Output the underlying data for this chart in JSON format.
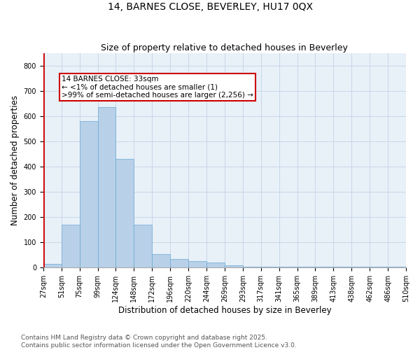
{
  "title1": "14, BARNES CLOSE, BEVERLEY, HU17 0QX",
  "title2": "Size of property relative to detached houses in Beverley",
  "xlabel": "Distribution of detached houses by size in Beverley",
  "ylabel": "Number of detached properties",
  "bar_values": [
    15,
    170,
    580,
    635,
    430,
    170,
    55,
    35,
    25,
    20,
    10,
    5,
    5,
    5,
    5,
    5,
    5,
    5,
    5,
    5
  ],
  "categories": [
    "27sqm",
    "51sqm",
    "75sqm",
    "99sqm",
    "124sqm",
    "148sqm",
    "172sqm",
    "196sqm",
    "220sqm",
    "244sqm",
    "269sqm",
    "293sqm",
    "317sqm",
    "341sqm",
    "365sqm",
    "389sqm",
    "413sqm",
    "438sqm",
    "462sqm",
    "486sqm",
    "510sqm"
  ],
  "bar_color": "#b8d0e8",
  "bar_edge_color": "#6aaad4",
  "highlight_color": "#cc0000",
  "annotation_text": "14 BARNES CLOSE: 33sqm\n← <1% of detached houses are smaller (1)\n>99% of semi-detached houses are larger (2,256) →",
  "ylim": [
    0,
    850
  ],
  "yticks": [
    0,
    100,
    200,
    300,
    400,
    500,
    600,
    700,
    800
  ],
  "grid_color": "#c8d8e8",
  "bg_color": "#e8f0f8",
  "footer_text": "Contains HM Land Registry data © Crown copyright and database right 2025.\nContains public sector information licensed under the Open Government Licence v3.0.",
  "title_fontsize": 10,
  "subtitle_fontsize": 9,
  "axis_label_fontsize": 8.5,
  "tick_fontsize": 7,
  "footer_fontsize": 6.5,
  "annotation_fontsize": 7.5
}
